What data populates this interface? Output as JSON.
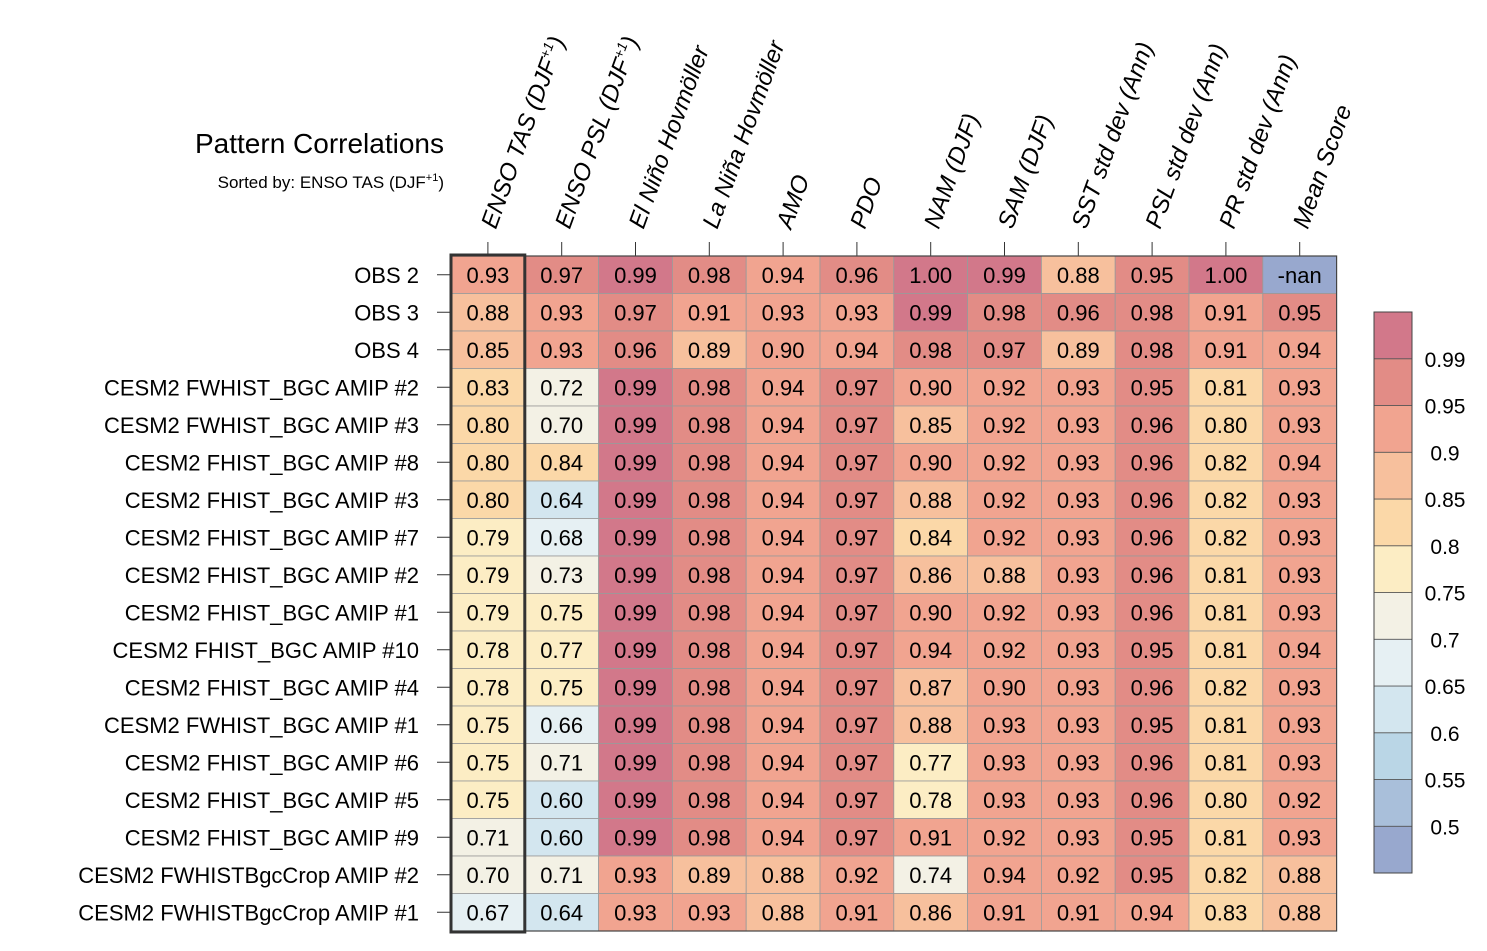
{
  "chart_data": {
    "type": "heatmap",
    "title": "Pattern Correlations",
    "subtitle": "Sorted by: ENSO TAS (DJF",
    "subtitle_sup": "+1",
    "subtitle_tail": ")",
    "columns": [
      {
        "label": "ENSO TAS (DJF",
        "sup": "+1",
        "tail": ")"
      },
      {
        "label": "ENSO PSL (DJF",
        "sup": "+1",
        "tail": ")"
      },
      {
        "label": "El Niño Hovmöller"
      },
      {
        "label": "La Niña Hovmöller"
      },
      {
        "label": "AMO"
      },
      {
        "label": "PDO"
      },
      {
        "label": "NAM (DJF)"
      },
      {
        "label": "SAM (DJF)"
      },
      {
        "label": "SST std dev (Ann)"
      },
      {
        "label": "PSL std dev (Ann)"
      },
      {
        "label": "PR std dev (Ann)"
      },
      {
        "label": "Mean Score"
      }
    ],
    "rows": [
      "OBS 2",
      "OBS 3",
      "OBS 4",
      "CESM2 FWHIST_BGC AMIP #2",
      "CESM2 FWHIST_BGC AMIP #3",
      "CESM2 FHIST_BGC AMIP #8",
      "CESM2 FHIST_BGC AMIP #3",
      "CESM2 FHIST_BGC AMIP #7",
      "CESM2 FHIST_BGC AMIP #2",
      "CESM2 FHIST_BGC AMIP #1",
      "CESM2 FHIST_BGC AMIP #10",
      "CESM2 FHIST_BGC AMIP #4",
      "CESM2 FWHIST_BGC AMIP #1",
      "CESM2 FHIST_BGC AMIP #6",
      "CESM2 FHIST_BGC AMIP #5",
      "CESM2 FHIST_BGC AMIP #9",
      "CESM2 FWHISTBgcCrop AMIP #2",
      "CESM2 FWHISTBgcCrop AMIP #1"
    ],
    "values": [
      [
        "0.93",
        "0.97",
        "0.99",
        "0.98",
        "0.94",
        "0.96",
        "1.00",
        "0.99",
        "0.88",
        "0.95",
        "1.00",
        "-nan"
      ],
      [
        "0.88",
        "0.93",
        "0.97",
        "0.91",
        "0.93",
        "0.93",
        "0.99",
        "0.98",
        "0.96",
        "0.98",
        "0.91",
        "0.95"
      ],
      [
        "0.85",
        "0.93",
        "0.96",
        "0.89",
        "0.90",
        "0.94",
        "0.98",
        "0.97",
        "0.89",
        "0.98",
        "0.91",
        "0.94"
      ],
      [
        "0.83",
        "0.72",
        "0.99",
        "0.98",
        "0.94",
        "0.97",
        "0.90",
        "0.92",
        "0.93",
        "0.95",
        "0.81",
        "0.93"
      ],
      [
        "0.80",
        "0.70",
        "0.99",
        "0.98",
        "0.94",
        "0.97",
        "0.85",
        "0.92",
        "0.93",
        "0.96",
        "0.80",
        "0.93"
      ],
      [
        "0.80",
        "0.84",
        "0.99",
        "0.98",
        "0.94",
        "0.97",
        "0.90",
        "0.92",
        "0.93",
        "0.96",
        "0.82",
        "0.94"
      ],
      [
        "0.80",
        "0.64",
        "0.99",
        "0.98",
        "0.94",
        "0.97",
        "0.88",
        "0.92",
        "0.93",
        "0.96",
        "0.82",
        "0.93"
      ],
      [
        "0.79",
        "0.68",
        "0.99",
        "0.98",
        "0.94",
        "0.97",
        "0.84",
        "0.92",
        "0.93",
        "0.96",
        "0.82",
        "0.93"
      ],
      [
        "0.79",
        "0.73",
        "0.99",
        "0.98",
        "0.94",
        "0.97",
        "0.86",
        "0.88",
        "0.93",
        "0.96",
        "0.81",
        "0.93"
      ],
      [
        "0.79",
        "0.75",
        "0.99",
        "0.98",
        "0.94",
        "0.97",
        "0.90",
        "0.92",
        "0.93",
        "0.96",
        "0.81",
        "0.93"
      ],
      [
        "0.78",
        "0.77",
        "0.99",
        "0.98",
        "0.94",
        "0.97",
        "0.94",
        "0.92",
        "0.93",
        "0.95",
        "0.81",
        "0.94"
      ],
      [
        "0.78",
        "0.75",
        "0.99",
        "0.98",
        "0.94",
        "0.97",
        "0.87",
        "0.90",
        "0.93",
        "0.96",
        "0.82",
        "0.93"
      ],
      [
        "0.75",
        "0.66",
        "0.99",
        "0.98",
        "0.94",
        "0.97",
        "0.88",
        "0.93",
        "0.93",
        "0.95",
        "0.81",
        "0.93"
      ],
      [
        "0.75",
        "0.71",
        "0.99",
        "0.98",
        "0.94",
        "0.97",
        "0.77",
        "0.93",
        "0.93",
        "0.96",
        "0.81",
        "0.93"
      ],
      [
        "0.75",
        "0.60",
        "0.99",
        "0.98",
        "0.94",
        "0.97",
        "0.78",
        "0.93",
        "0.93",
        "0.96",
        "0.80",
        "0.92"
      ],
      [
        "0.71",
        "0.60",
        "0.99",
        "0.98",
        "0.94",
        "0.97",
        "0.91",
        "0.92",
        "0.93",
        "0.95",
        "0.81",
        "0.93"
      ],
      [
        "0.70",
        "0.71",
        "0.93",
        "0.89",
        "0.88",
        "0.92",
        "0.74",
        "0.94",
        "0.92",
        "0.95",
        "0.82",
        "0.88"
      ],
      [
        "0.67",
        "0.64",
        "0.93",
        "0.93",
        "0.88",
        "0.91",
        "0.86",
        "0.91",
        "0.91",
        "0.94",
        "0.83",
        "0.88"
      ]
    ],
    "highlighted_column": 0,
    "colorbar": {
      "levels": [
        0.5,
        0.55,
        0.6,
        0.65,
        0.7,
        0.75,
        0.8,
        0.85,
        0.9,
        0.95,
        0.99
      ],
      "labels": [
        "0.5",
        "0.55",
        "0.6",
        "0.65",
        "0.7",
        "0.75",
        "0.8",
        "0.85",
        "0.9",
        "0.95",
        "0.99"
      ],
      "colors": [
        "#98A8CE",
        "#A9BFDA",
        "#BAD6E6",
        "#D3E6EF",
        "#E6F0F3",
        "#F3F1E5",
        "#FCEDC4",
        "#FBD8A8",
        "#F7C09D",
        "#F1A490",
        "#E28C86",
        "#D2788A"
      ],
      "nan_color": "#98A8CE"
    }
  }
}
